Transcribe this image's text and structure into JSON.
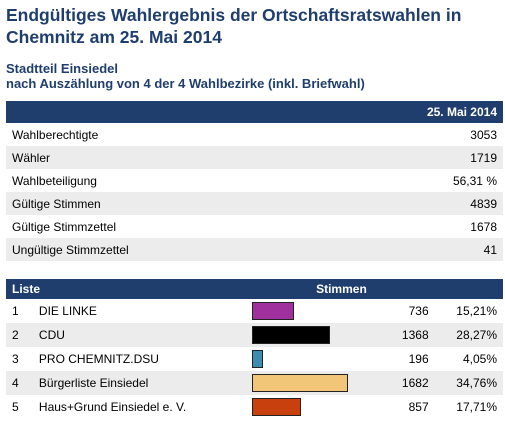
{
  "header": {
    "title": "Endgültiges Wahlergebnis der Ortschaftsratswahlen in Chemnitz am 25. Mai 2014",
    "subtitle_line1": "Stadtteil Einsiedel",
    "subtitle_line2": "nach Auszählung von 4 der 4 Wahlbezirke (inkl. Briefwahl)"
  },
  "summary": {
    "date_header": "25. Mai 2014",
    "rows": [
      {
        "label": "Wahlberechtigte",
        "value": "3053"
      },
      {
        "label": "Wähler",
        "value": "1719"
      },
      {
        "label": "Wahlbeteiligung",
        "value": "56,31 %"
      },
      {
        "label": "Gültige Stimmen",
        "value": "4839"
      },
      {
        "label": "Gültige Stimmzettel",
        "value": "1678"
      },
      {
        "label": "Ungültige Stimmzettel",
        "value": "41"
      }
    ]
  },
  "results": {
    "col_list": "Liste",
    "col_votes": "Stimmen",
    "rows": [
      {
        "nr": "1",
        "name": "DIE LINKE",
        "votes": "736",
        "pct": "15,21%",
        "share": 15.21,
        "color": "#a0309e"
      },
      {
        "nr": "2",
        "name": "CDU",
        "votes": "1368",
        "pct": "28,27%",
        "share": 28.27,
        "color": "#000000"
      },
      {
        "nr": "3",
        "name": "PRO CHEMNITZ.DSU",
        "votes": "196",
        "pct": "4,05%",
        "share": 4.05,
        "color": "#3e8cb0"
      },
      {
        "nr": "4",
        "name": "Bürgerliste Einsiedel",
        "votes": "1682",
        "pct": "34,76%",
        "share": 34.76,
        "color": "#f2c679"
      },
      {
        "nr": "5",
        "name": "Haus+Grund Einsiedel e. V.",
        "votes": "857",
        "pct": "17,71%",
        "share": 17.71,
        "color": "#c8400e"
      }
    ]
  }
}
